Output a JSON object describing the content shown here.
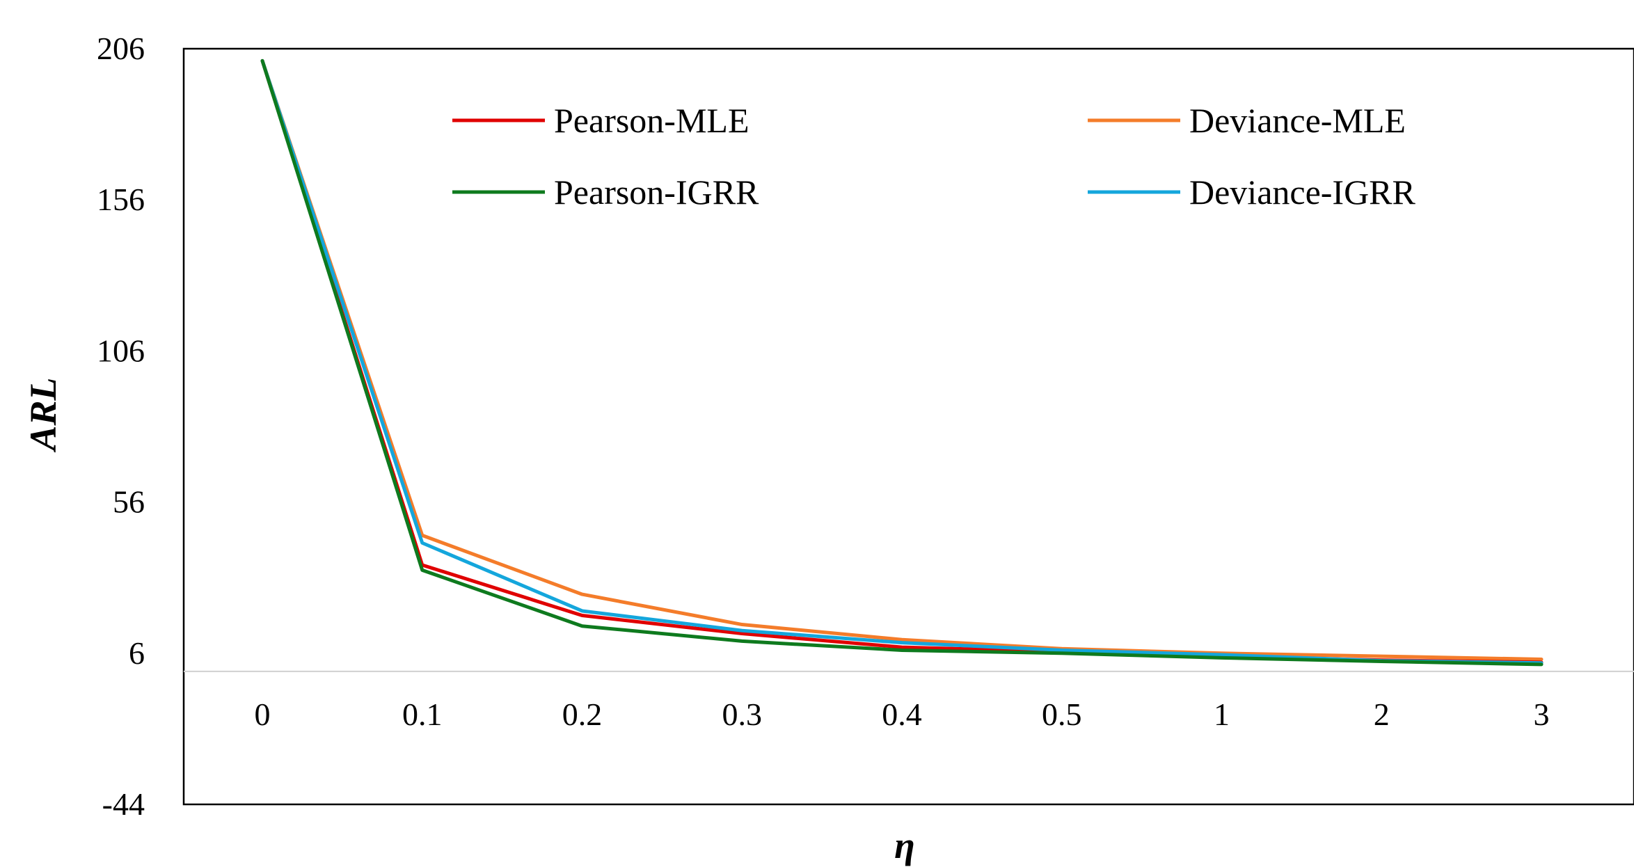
{
  "chart_data": {
    "type": "line",
    "title": "",
    "xlabel": "η",
    "ylabel": "ARL",
    "categories": [
      "0",
      "0.1",
      "0.2",
      "0.3",
      "0.4",
      "0.5",
      "1",
      "2",
      "3"
    ],
    "ylim": [
      -44,
      206
    ],
    "yticks": [
      "206",
      "156",
      "106",
      "56",
      "6",
      "-44"
    ],
    "ytick_values": [
      206,
      156,
      106,
      56,
      6,
      -44
    ],
    "baseline": 0,
    "legend_position": "top",
    "series": [
      {
        "name": "Pearson-MLE",
        "color": "#e00000",
        "values": [
          202,
          35.2,
          18.5,
          12.5,
          8.0,
          6.5,
          5.0,
          3.7,
          3.0
        ]
      },
      {
        "name": "Deviance-MLE",
        "color": "#f47c2a",
        "values": [
          202,
          45.0,
          25.5,
          15.5,
          10.5,
          7.5,
          6.0,
          5.0,
          4.0
        ]
      },
      {
        "name": "Pearson-IGRR",
        "color": "#0e7a1e",
        "values": [
          202,
          33.5,
          15.0,
          10.0,
          7.0,
          6.0,
          4.5,
          3.3,
          2.3
        ]
      },
      {
        "name": "Deviance-IGRR",
        "color": "#14a6dc",
        "values": [
          202,
          42.5,
          20.0,
          13.5,
          9.5,
          7.0,
          5.5,
          3.5,
          2.8
        ]
      }
    ]
  }
}
